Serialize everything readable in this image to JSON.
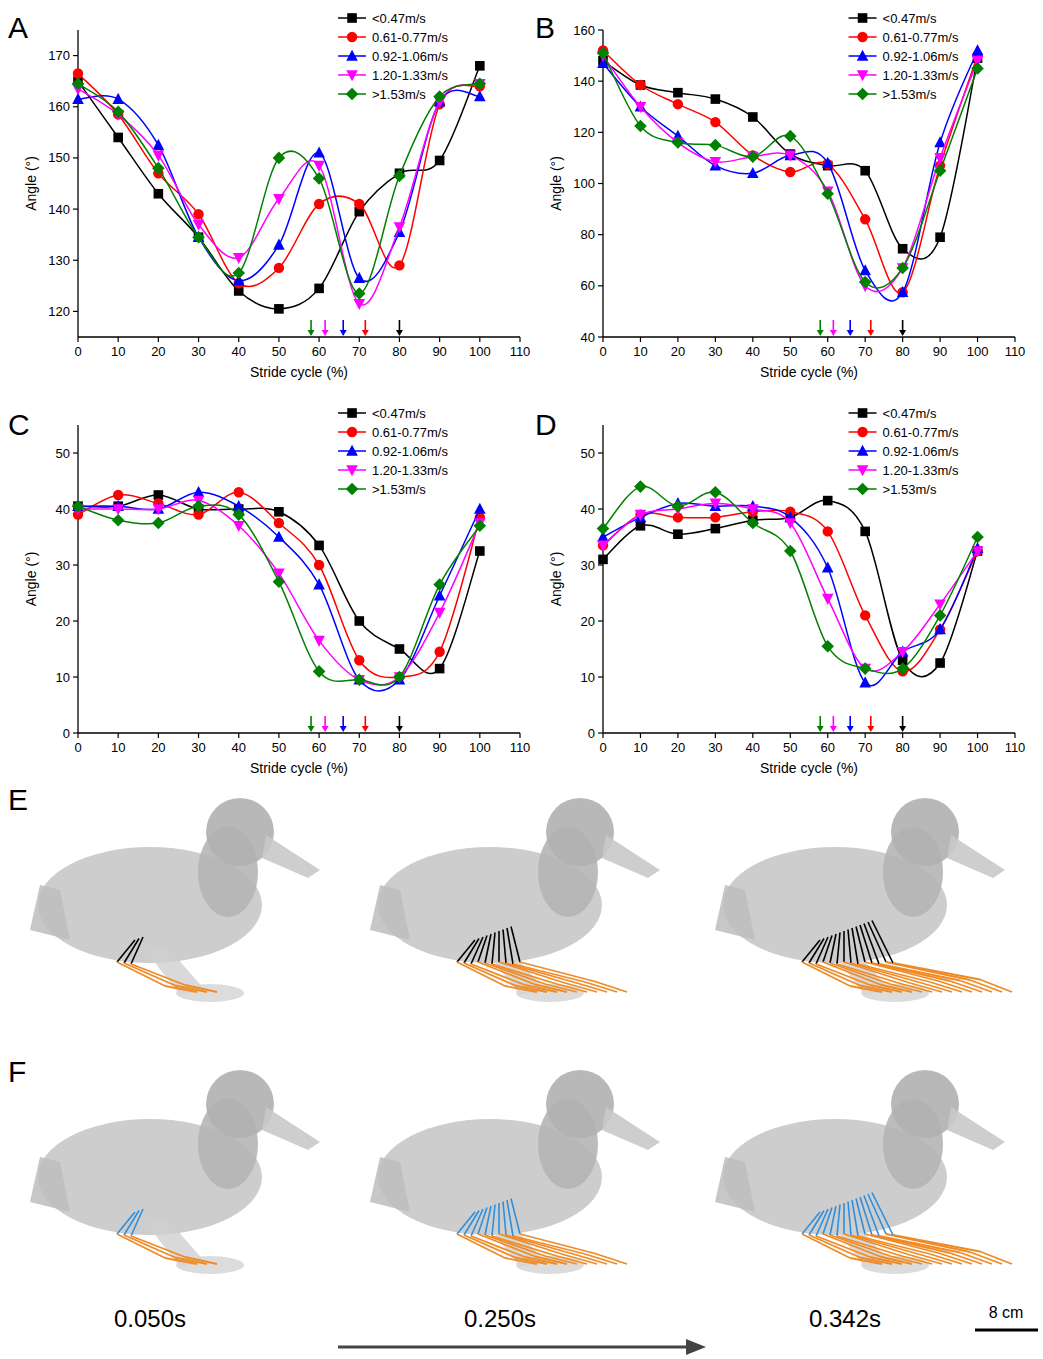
{
  "chart_data": [
    {
      "type": "line",
      "title": "A",
      "x_label": "Stride cycle (%)",
      "y_label": "Angle (°)",
      "x": [
        0,
        10,
        20,
        30,
        40,
        50,
        60,
        70,
        80,
        90,
        100
      ],
      "xlim": [
        0,
        110
      ],
      "xticks": [
        0,
        10,
        20,
        30,
        40,
        50,
        60,
        70,
        80,
        90,
        100,
        110
      ],
      "ylim": [
        115,
        175
      ],
      "yticks": [
        120,
        130,
        140,
        150,
        160,
        170
      ],
      "legend": "top-right",
      "series": [
        {
          "name": "<0.47m/s",
          "color": "#000000",
          "marker": "square",
          "toe_off": 80,
          "values": [
            165,
            154,
            143,
            134.5,
            124,
            120.5,
            124.5,
            139.5,
            147,
            149.5,
            168
          ]
        },
        {
          "name": "0.61-0.77m/s",
          "color": "#ff0000",
          "marker": "circle",
          "toe_off": 71.5,
          "values": [
            166.5,
            158.5,
            147,
            139,
            125.5,
            128.5,
            141,
            141,
            129,
            160.5,
            164
          ]
        },
        {
          "name": "0.92-1.06m/s",
          "color": "#0000ff",
          "marker": "triangle",
          "toe_off": 66,
          "values": [
            161.5,
            161.5,
            152.5,
            134.5,
            126,
            133,
            151,
            126.5,
            135.5,
            161,
            162
          ]
        },
        {
          "name": "1.20-1.33m/s",
          "color": "#ff00ff",
          "marker": "triangle-down",
          "toe_off": 61.5,
          "values": [
            163.5,
            158.5,
            150.5,
            137,
            130.5,
            142,
            148.5,
            121.5,
            136.5,
            161,
            164.5
          ]
        },
        {
          "name": ">1.53m/s",
          "color": "#008000",
          "marker": "diamond",
          "toe_off": 58,
          "values": [
            164.5,
            159,
            148,
            134.5,
            127.5,
            150,
            146,
            123.5,
            146.5,
            162,
            164.5
          ]
        }
      ]
    },
    {
      "type": "line",
      "title": "B",
      "x_label": "Stride cycle (%)",
      "y_label": "Angle (°)",
      "x": [
        0,
        10,
        20,
        30,
        40,
        50,
        60,
        70,
        80,
        90,
        100
      ],
      "xlim": [
        0,
        110
      ],
      "xticks": [
        0,
        10,
        20,
        30,
        40,
        50,
        60,
        70,
        80,
        90,
        100,
        110
      ],
      "ylim": [
        40,
        160
      ],
      "yticks": [
        40,
        60,
        80,
        100,
        120,
        140,
        160
      ],
      "legend": "top-right",
      "series": [
        {
          "name": "<0.47m/s",
          "color": "#000000",
          "marker": "square",
          "toe_off": 80,
          "values": [
            148,
            138.5,
            135.5,
            133,
            126,
            111.5,
            107,
            105,
            74.5,
            79,
            149
          ]
        },
        {
          "name": "0.61-0.77m/s",
          "color": "#ff0000",
          "marker": "circle",
          "toe_off": 71.5,
          "values": [
            152,
            138.5,
            131,
            124,
            111,
            104.5,
            107.5,
            86,
            57.5,
            107,
            150
          ]
        },
        {
          "name": "0.92-1.06m/s",
          "color": "#0000ff",
          "marker": "triangle",
          "toe_off": 66,
          "values": [
            147,
            130,
            118.5,
            107,
            104,
            111,
            108,
            66,
            57.5,
            116,
            152
          ]
        },
        {
          "name": "1.20-1.33m/s",
          "color": "#ff00ff",
          "marker": "triangle-down",
          "toe_off": 61.5,
          "values": [
            150,
            130,
            116,
            108.5,
            110.5,
            111,
            97,
            60,
            67,
            110,
            148
          ]
        },
        {
          "name": ">1.53m/s",
          "color": "#008000",
          "marker": "diamond",
          "toe_off": 58,
          "values": [
            151,
            122.5,
            116,
            115,
            110.5,
            118.5,
            96,
            61.5,
            67,
            105,
            145
          ]
        }
      ]
    },
    {
      "type": "line",
      "title": "C",
      "x_label": "Stride cycle (%)",
      "y_label": "Angle (°)",
      "x": [
        0,
        10,
        20,
        30,
        40,
        50,
        60,
        70,
        80,
        90,
        100
      ],
      "xlim": [
        0,
        110
      ],
      "xticks": [
        0,
        10,
        20,
        30,
        40,
        50,
        60,
        70,
        80,
        90,
        100,
        110
      ],
      "ylim": [
        0,
        55
      ],
      "yticks": [
        0,
        10,
        20,
        30,
        40,
        50
      ],
      "legend": "top-right",
      "series": [
        {
          "name": "<0.47m/s",
          "color": "#000000",
          "marker": "square",
          "toe_off": 80,
          "values": [
            40.5,
            40.5,
            42.5,
            40,
            40,
            39.5,
            33.5,
            20,
            15,
            11.5,
            32.5
          ]
        },
        {
          "name": "0.61-0.77m/s",
          "color": "#ff0000",
          "marker": "circle",
          "toe_off": 71.5,
          "values": [
            39,
            42.5,
            41,
            39,
            43,
            37.5,
            30,
            13,
            10,
            14.5,
            38.5
          ]
        },
        {
          "name": "0.92-1.06m/s",
          "color": "#0000ff",
          "marker": "triangle",
          "toe_off": 66,
          "values": [
            40.5,
            40.5,
            40,
            43,
            40.5,
            35,
            26.5,
            9.5,
            9.5,
            24.5,
            40
          ]
        },
        {
          "name": "1.20-1.33m/s",
          "color": "#ff00ff",
          "marker": "triangle-down",
          "toe_off": 61.5,
          "values": [
            40,
            40,
            40,
            41.5,
            37,
            28.5,
            16.5,
            9.5,
            10,
            21.5,
            37.5
          ]
        },
        {
          "name": ">1.53m/s",
          "color": "#008000",
          "marker": "diamond",
          "toe_off": 58,
          "values": [
            40.5,
            38,
            37.5,
            40.5,
            39,
            27,
            11,
            9.5,
            10,
            26.5,
            37
          ]
        }
      ]
    },
    {
      "type": "line",
      "title": "D",
      "x_label": "Stride cycle (%)",
      "y_label": "Angle (°)",
      "x": [
        0,
        10,
        20,
        30,
        40,
        50,
        60,
        70,
        80,
        90,
        100
      ],
      "xlim": [
        0,
        110
      ],
      "xticks": [
        0,
        10,
        20,
        30,
        40,
        50,
        60,
        70,
        80,
        90,
        100,
        110
      ],
      "ylim": [
        0,
        55
      ],
      "yticks": [
        0,
        10,
        20,
        30,
        40,
        50
      ],
      "legend": "top-right",
      "series": [
        {
          "name": "<0.47m/s",
          "color": "#000000",
          "marker": "square",
          "toe_off": 80,
          "values": [
            31,
            37,
            35.5,
            36.5,
            38,
            38.5,
            41.5,
            36,
            13,
            12.5,
            32.5
          ]
        },
        {
          "name": "0.61-0.77m/s",
          "color": "#ff0000",
          "marker": "circle",
          "toe_off": 71.5,
          "values": [
            33.5,
            39,
            38.5,
            38.5,
            39.5,
            39.5,
            36,
            21,
            11,
            18.5,
            32.5
          ]
        },
        {
          "name": "0.92-1.06m/s",
          "color": "#0000ff",
          "marker": "triangle",
          "toe_off": 66,
          "values": [
            35,
            38.5,
            41,
            40.5,
            40.5,
            38.5,
            29.5,
            9,
            14.5,
            18.5,
            33
          ]
        },
        {
          "name": "1.20-1.33m/s",
          "color": "#ff00ff",
          "marker": "triangle-down",
          "toe_off": 61.5,
          "values": [
            33.5,
            39,
            40,
            41,
            40,
            37.5,
            24,
            11.5,
            14.5,
            23,
            32.5
          ]
        },
        {
          "name": ">1.53m/s",
          "color": "#008000",
          "marker": "diamond",
          "toe_off": 58,
          "values": [
            36.5,
            44,
            40.5,
            43,
            37.5,
            32.5,
            15.5,
            11.5,
            11.5,
            21,
            35
          ]
        }
      ]
    }
  ],
  "illustrations": {
    "panels": [
      {
        "label": "E"
      },
      {
        "label": "F"
      }
    ],
    "times": [
      "0.050s",
      "0.250s",
      "0.342s"
    ],
    "scale_bar": "8 cm"
  }
}
